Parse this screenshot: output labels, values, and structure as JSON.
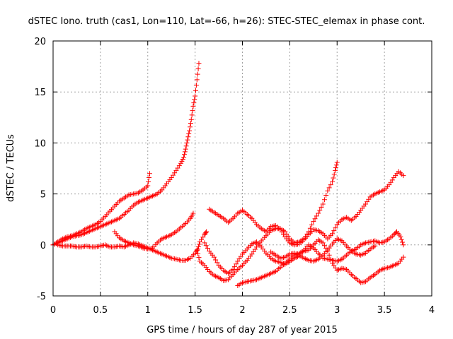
{
  "chart_data": {
    "type": "scatter",
    "title": "dSTEC Iono. truth (cas1, Lon=110, Lat=-66, h=26): STEC-STEC_elemax in phase cont.",
    "xlabel": "GPS time / hours of day 287 of year 2015",
    "ylabel": "dSTEC  / TECUs",
    "xlim": [
      0,
      4
    ],
    "ylim": [
      -5,
      20
    ],
    "xticks": [
      "0",
      "0.5",
      "1",
      "1.5",
      "2",
      "2.5",
      "3",
      "3.5",
      "4"
    ],
    "yticks": [
      "-5",
      "0",
      "5",
      "10",
      "15",
      "20"
    ],
    "grid": true,
    "marker": "+",
    "color": "#ff0000",
    "series": [
      {
        "points": [
          [
            0.0,
            0.0
          ],
          [
            0.05,
            0.3
          ],
          [
            0.1,
            0.6
          ],
          [
            0.15,
            0.8
          ],
          [
            0.2,
            0.9
          ],
          [
            0.25,
            1.1
          ],
          [
            0.3,
            1.3
          ],
          [
            0.35,
            1.6
          ],
          [
            0.4,
            1.8
          ],
          [
            0.45,
            2.0
          ],
          [
            0.5,
            2.3
          ],
          [
            0.55,
            2.8
          ],
          [
            0.6,
            3.3
          ],
          [
            0.65,
            3.8
          ],
          [
            0.7,
            4.3
          ],
          [
            0.75,
            4.6
          ],
          [
            0.8,
            4.9
          ],
          [
            0.85,
            5.0
          ],
          [
            0.9,
            5.1
          ],
          [
            0.95,
            5.4
          ],
          [
            1.0,
            5.8
          ],
          [
            1.02,
            7.0
          ]
        ]
      },
      {
        "points": [
          [
            0.0,
            0.0
          ],
          [
            0.05,
            0.2
          ],
          [
            0.1,
            0.4
          ],
          [
            0.15,
            0.6
          ],
          [
            0.2,
            0.8
          ],
          [
            0.25,
            0.9
          ],
          [
            0.3,
            1.0
          ],
          [
            0.35,
            1.2
          ],
          [
            0.4,
            1.4
          ],
          [
            0.45,
            1.6
          ],
          [
            0.5,
            1.8
          ],
          [
            0.55,
            2.0
          ],
          [
            0.6,
            2.2
          ],
          [
            0.65,
            2.4
          ],
          [
            0.7,
            2.6
          ],
          [
            0.75,
            3.0
          ],
          [
            0.8,
            3.4
          ],
          [
            0.85,
            3.9
          ],
          [
            0.9,
            4.2
          ],
          [
            0.95,
            4.4
          ],
          [
            1.0,
            4.6
          ],
          [
            1.05,
            4.8
          ],
          [
            1.1,
            5.0
          ],
          [
            1.15,
            5.4
          ],
          [
            1.2,
            6.0
          ],
          [
            1.25,
            6.6
          ],
          [
            1.3,
            7.3
          ],
          [
            1.35,
            8.0
          ],
          [
            1.38,
            8.6
          ],
          [
            1.4,
            9.4
          ],
          [
            1.42,
            10.3
          ],
          [
            1.44,
            11.2
          ],
          [
            1.46,
            12.3
          ],
          [
            1.48,
            13.6
          ],
          [
            1.5,
            14.6
          ],
          [
            1.52,
            16.2
          ],
          [
            1.54,
            17.8
          ]
        ]
      },
      {
        "points": [
          [
            0.05,
            0.0
          ],
          [
            0.1,
            -0.1
          ],
          [
            0.15,
            -0.1
          ],
          [
            0.2,
            -0.1
          ],
          [
            0.25,
            -0.2
          ],
          [
            0.3,
            -0.2
          ],
          [
            0.35,
            -0.1
          ],
          [
            0.4,
            -0.2
          ],
          [
            0.45,
            -0.2
          ],
          [
            0.5,
            -0.1
          ],
          [
            0.55,
            0.0
          ],
          [
            0.6,
            -0.2
          ],
          [
            0.65,
            -0.2
          ],
          [
            0.7,
            -0.1
          ],
          [
            0.75,
            -0.2
          ],
          [
            0.8,
            0.0
          ],
          [
            0.85,
            0.2
          ],
          [
            0.9,
            0.1
          ],
          [
            0.95,
            -0.1
          ],
          [
            1.0,
            -0.3
          ],
          [
            1.05,
            -0.5
          ],
          [
            1.1,
            -0.7
          ],
          [
            1.15,
            -0.9
          ],
          [
            1.2,
            -1.1
          ],
          [
            1.25,
            -1.3
          ],
          [
            1.3,
            -1.4
          ],
          [
            1.35,
            -1.5
          ],
          [
            1.4,
            -1.5
          ],
          [
            1.45,
            -1.3
          ],
          [
            1.5,
            -0.8
          ],
          [
            1.53,
            -0.4
          ],
          [
            1.55,
            0.3
          ],
          [
            1.6,
            1.0
          ],
          [
            1.62,
            1.3
          ]
        ]
      },
      {
        "points": [
          [
            0.65,
            1.3
          ],
          [
            0.7,
            0.7
          ],
          [
            0.75,
            0.4
          ],
          [
            0.8,
            0.2
          ],
          [
            0.85,
            0.0
          ],
          [
            0.9,
            -0.1
          ],
          [
            0.95,
            -0.3
          ],
          [
            1.0,
            -0.4
          ],
          [
            1.05,
            -0.3
          ],
          [
            1.1,
            0.2
          ],
          [
            1.15,
            0.6
          ],
          [
            1.2,
            0.8
          ],
          [
            1.25,
            1.0
          ],
          [
            1.3,
            1.3
          ],
          [
            1.35,
            1.7
          ],
          [
            1.4,
            2.1
          ],
          [
            1.45,
            2.6
          ],
          [
            1.48,
            3.1
          ]
        ]
      },
      {
        "points": [
          [
            1.52,
            -0.5
          ],
          [
            1.55,
            -1.6
          ],
          [
            1.6,
            -2.0
          ],
          [
            1.65,
            -2.6
          ],
          [
            1.7,
            -3.0
          ],
          [
            1.75,
            -3.2
          ],
          [
            1.8,
            -3.5
          ],
          [
            1.85,
            -3.4
          ],
          [
            1.9,
            -2.9
          ],
          [
            1.95,
            -2.4
          ],
          [
            2.0,
            -2.0
          ],
          [
            2.05,
            -1.5
          ],
          [
            2.1,
            -0.9
          ],
          [
            2.15,
            -0.2
          ],
          [
            2.2,
            0.4
          ],
          [
            2.25,
            0.9
          ],
          [
            2.3,
            1.4
          ],
          [
            2.35,
            1.6
          ],
          [
            2.4,
            1.6
          ],
          [
            2.45,
            1.3
          ],
          [
            2.5,
            0.6
          ],
          [
            2.55,
            0.2
          ],
          [
            2.6,
            0.3
          ],
          [
            2.65,
            0.6
          ],
          [
            2.7,
            1.3
          ],
          [
            2.75,
            2.3
          ],
          [
            2.8,
            3.1
          ],
          [
            2.85,
            4.0
          ],
          [
            2.9,
            5.3
          ],
          [
            2.95,
            6.2
          ],
          [
            2.98,
            7.3
          ],
          [
            3.0,
            8.1
          ]
        ]
      },
      {
        "points": [
          [
            1.65,
            3.5
          ],
          [
            1.7,
            3.2
          ],
          [
            1.75,
            2.9
          ],
          [
            1.8,
            2.6
          ],
          [
            1.85,
            2.2
          ],
          [
            1.9,
            2.6
          ],
          [
            1.95,
            3.1
          ],
          [
            2.0,
            3.4
          ],
          [
            2.05,
            3.0
          ],
          [
            2.1,
            2.6
          ],
          [
            2.15,
            2.0
          ],
          [
            2.2,
            1.6
          ],
          [
            2.25,
            1.3
          ],
          [
            2.3,
            1.8
          ],
          [
            2.35,
            1.9
          ],
          [
            2.4,
            1.5
          ],
          [
            2.45,
            0.8
          ],
          [
            2.5,
            0.2
          ],
          [
            2.55,
            0.0
          ],
          [
            2.6,
            0.1
          ],
          [
            2.65,
            0.5
          ],
          [
            2.7,
            1.0
          ],
          [
            2.75,
            1.5
          ],
          [
            2.8,
            1.4
          ],
          [
            2.85,
            1.1
          ],
          [
            2.9,
            0.6
          ],
          [
            2.95,
            1.1
          ],
          [
            3.0,
            2.0
          ],
          [
            3.05,
            2.5
          ],
          [
            3.1,
            2.7
          ],
          [
            3.15,
            2.4
          ],
          [
            3.2,
            2.8
          ],
          [
            3.25,
            3.4
          ],
          [
            3.3,
            4.0
          ],
          [
            3.35,
            4.7
          ],
          [
            3.4,
            5.0
          ],
          [
            3.45,
            5.2
          ],
          [
            3.5,
            5.4
          ],
          [
            3.55,
            5.9
          ],
          [
            3.6,
            6.6
          ],
          [
            3.65,
            7.2
          ],
          [
            3.7,
            6.8
          ]
        ]
      },
      {
        "points": [
          [
            1.6,
            0.2
          ],
          [
            1.65,
            -0.6
          ],
          [
            1.7,
            -1.2
          ],
          [
            1.75,
            -2.0
          ],
          [
            1.8,
            -2.5
          ],
          [
            1.85,
            -2.8
          ],
          [
            1.9,
            -2.4
          ],
          [
            1.95,
            -1.6
          ],
          [
            2.0,
            -0.9
          ],
          [
            2.05,
            -0.4
          ],
          [
            2.1,
            0.1
          ],
          [
            2.15,
            0.3
          ],
          [
            2.2,
            -0.2
          ],
          [
            2.25,
            -0.8
          ],
          [
            2.3,
            -1.3
          ],
          [
            2.35,
            -1.6
          ],
          [
            2.4,
            -1.7
          ],
          [
            2.45,
            -1.9
          ],
          [
            2.5,
            -1.6
          ],
          [
            2.55,
            -1.3
          ],
          [
            2.6,
            -1.1
          ],
          [
            2.65,
            -0.5
          ],
          [
            2.7,
            0.0
          ],
          [
            2.75,
            -0.3
          ],
          [
            2.8,
            -0.8
          ],
          [
            2.85,
            -1.3
          ],
          [
            2.9,
            -1.4
          ],
          [
            2.95,
            -1.5
          ],
          [
            3.0,
            -1.6
          ],
          [
            3.05,
            -1.4
          ],
          [
            3.1,
            -1.0
          ],
          [
            3.15,
            -0.6
          ],
          [
            3.2,
            -0.4
          ],
          [
            3.25,
            0.0
          ],
          [
            3.3,
            0.2
          ],
          [
            3.35,
            0.3
          ],
          [
            3.4,
            0.4
          ],
          [
            3.45,
            0.2
          ],
          [
            3.5,
            0.3
          ],
          [
            3.55,
            0.6
          ],
          [
            3.6,
            1.0
          ],
          [
            3.63,
            1.3
          ],
          [
            3.67,
            0.8
          ],
          [
            3.7,
            0.0
          ]
        ]
      },
      {
        "points": [
          [
            1.95,
            -4.0
          ],
          [
            2.0,
            -3.7
          ],
          [
            2.05,
            -3.6
          ],
          [
            2.1,
            -3.5
          ],
          [
            2.15,
            -3.4
          ],
          [
            2.2,
            -3.2
          ],
          [
            2.25,
            -3.0
          ],
          [
            2.3,
            -2.8
          ],
          [
            2.35,
            -2.6
          ],
          [
            2.4,
            -2.2
          ],
          [
            2.45,
            -1.8
          ],
          [
            2.5,
            -1.4
          ],
          [
            2.55,
            -1.0
          ],
          [
            2.6,
            -0.8
          ],
          [
            2.65,
            -0.6
          ],
          [
            2.7,
            -0.5
          ],
          [
            2.75,
            0.0
          ],
          [
            2.8,
            0.5
          ],
          [
            2.85,
            0.2
          ],
          [
            2.9,
            -0.6
          ],
          [
            2.95,
            -1.8
          ],
          [
            3.0,
            -2.5
          ],
          [
            3.05,
            -2.3
          ],
          [
            3.1,
            -2.4
          ],
          [
            3.15,
            -2.9
          ],
          [
            3.2,
            -3.3
          ],
          [
            3.25,
            -3.7
          ],
          [
            3.3,
            -3.6
          ],
          [
            3.35,
            -3.2
          ],
          [
            3.4,
            -2.9
          ],
          [
            3.45,
            -2.5
          ],
          [
            3.5,
            -2.3
          ],
          [
            3.55,
            -2.2
          ],
          [
            3.6,
            -2.0
          ],
          [
            3.65,
            -1.8
          ],
          [
            3.7,
            -1.2
          ]
        ]
      },
      {
        "points": [
          [
            2.3,
            -0.7
          ],
          [
            2.35,
            -1.0
          ],
          [
            2.4,
            -1.3
          ],
          [
            2.45,
            -1.2
          ],
          [
            2.5,
            -0.9
          ],
          [
            2.55,
            -0.8
          ],
          [
            2.6,
            -1.0
          ],
          [
            2.65,
            -1.3
          ],
          [
            2.7,
            -1.5
          ],
          [
            2.75,
            -1.6
          ],
          [
            2.8,
            -1.4
          ],
          [
            2.85,
            -1.0
          ],
          [
            2.9,
            -0.5
          ],
          [
            2.95,
            0.1
          ],
          [
            3.0,
            0.6
          ],
          [
            3.05,
            0.4
          ],
          [
            3.1,
            -0.1
          ],
          [
            3.15,
            -0.6
          ],
          [
            3.2,
            -0.9
          ],
          [
            3.25,
            -1.0
          ],
          [
            3.3,
            -0.8
          ],
          [
            3.35,
            -0.4
          ],
          [
            3.4,
            -0.1
          ]
        ]
      }
    ]
  }
}
